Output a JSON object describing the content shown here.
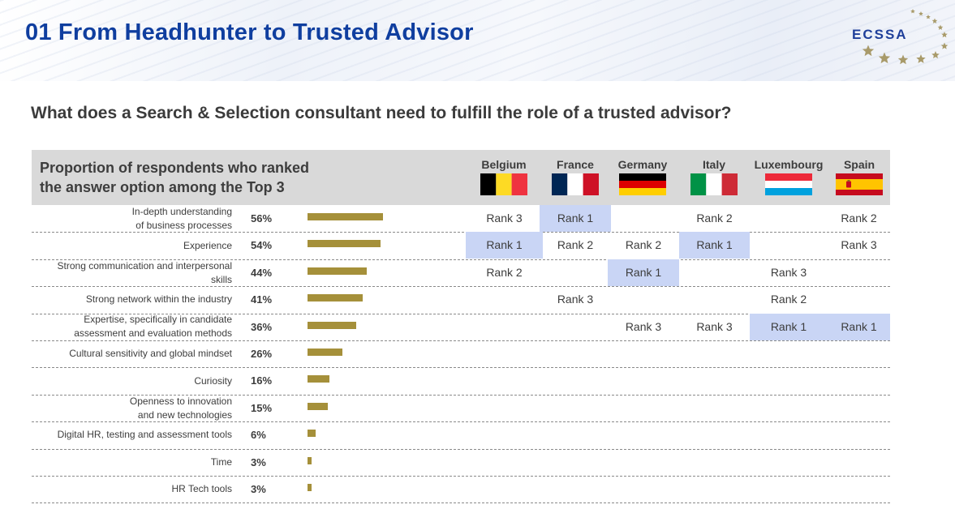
{
  "header": {
    "title": "01 From Headhunter to Trusted Advisor",
    "logo_text": "ECSSA"
  },
  "question": "What does a Search & Selection consultant need to fulfill the role of a trusted advisor?",
  "panel": {
    "title_line1": "Proportion of respondents who ranked",
    "title_line2": "the answer option among the Top 3"
  },
  "colors": {
    "title_blue": "#0f3e9f",
    "bar": "#a5903a",
    "highlight": "#c9d5f5",
    "header_gray": "#d9d9d9"
  },
  "countries": [
    {
      "name": "Belgium",
      "flag": "belgium-flag"
    },
    {
      "name": "France",
      "flag": "france-flag"
    },
    {
      "name": "Germany",
      "flag": "germany-flag"
    },
    {
      "name": "Italy",
      "flag": "italy-flag"
    },
    {
      "name": "Luxembourg",
      "flag": "luxembourg-flag"
    },
    {
      "name": "Spain",
      "flag": "spain-flag"
    }
  ],
  "rows": [
    {
      "label": [
        "In-depth understanding",
        "of  business processes"
      ],
      "pct_label": "56%",
      "value": 56,
      "ranks": [
        {
          "text": "Rank 3",
          "hl": false
        },
        {
          "text": "Rank 1",
          "hl": true
        },
        {
          "text": "",
          "hl": false
        },
        {
          "text": "Rank 2",
          "hl": false
        },
        {
          "text": "",
          "hl": false
        },
        {
          "text": "Rank 2",
          "hl": false
        }
      ]
    },
    {
      "label": [
        "Experience"
      ],
      "pct_label": "54%",
      "value": 54,
      "ranks": [
        {
          "text": "Rank 1",
          "hl": true
        },
        {
          "text": "Rank 2",
          "hl": false
        },
        {
          "text": "Rank 2",
          "hl": false
        },
        {
          "text": "Rank 1",
          "hl": true
        },
        {
          "text": "",
          "hl": false
        },
        {
          "text": "Rank 3",
          "hl": false
        }
      ]
    },
    {
      "label": [
        "Strong communication and interpersonal",
        "skills"
      ],
      "pct_label": "44%",
      "value": 44,
      "ranks": [
        {
          "text": "Rank 2",
          "hl": false
        },
        {
          "text": "",
          "hl": false
        },
        {
          "text": "Rank 1",
          "hl": true
        },
        {
          "text": "",
          "hl": false
        },
        {
          "text": "Rank 3",
          "hl": false
        },
        {
          "text": "",
          "hl": false
        }
      ]
    },
    {
      "label": [
        "Strong network within the industry"
      ],
      "pct_label": "41%",
      "value": 41,
      "ranks": [
        {
          "text": "",
          "hl": false
        },
        {
          "text": "Rank 3",
          "hl": false
        },
        {
          "text": "",
          "hl": false
        },
        {
          "text": "",
          "hl": false
        },
        {
          "text": "Rank 2",
          "hl": false
        },
        {
          "text": "",
          "hl": false
        }
      ]
    },
    {
      "label": [
        "Expertise, specifically in candidate",
        "assessment and evaluation methods"
      ],
      "pct_label": "36%",
      "value": 36,
      "ranks": [
        {
          "text": "",
          "hl": false
        },
        {
          "text": "",
          "hl": false
        },
        {
          "text": "Rank 3",
          "hl": false
        },
        {
          "text": "Rank 3",
          "hl": false
        },
        {
          "text": "Rank 1",
          "hl": true
        },
        {
          "text": "Rank 1",
          "hl": true
        }
      ]
    },
    {
      "label": [
        "Cultural sensitivity and global mindset"
      ],
      "pct_label": "26%",
      "value": 26,
      "ranks": [
        {
          "text": "",
          "hl": false
        },
        {
          "text": "",
          "hl": false
        },
        {
          "text": "",
          "hl": false
        },
        {
          "text": "",
          "hl": false
        },
        {
          "text": "",
          "hl": false
        },
        {
          "text": "",
          "hl": false
        }
      ]
    },
    {
      "label": [
        "Curiosity"
      ],
      "pct_label": "16%",
      "value": 16,
      "ranks": [
        {
          "text": "",
          "hl": false
        },
        {
          "text": "",
          "hl": false
        },
        {
          "text": "",
          "hl": false
        },
        {
          "text": "",
          "hl": false
        },
        {
          "text": "",
          "hl": false
        },
        {
          "text": "",
          "hl": false
        }
      ]
    },
    {
      "label": [
        "Openness to innovation",
        "and new technologies"
      ],
      "pct_label": "15%",
      "value": 15,
      "ranks": [
        {
          "text": "",
          "hl": false
        },
        {
          "text": "",
          "hl": false
        },
        {
          "text": "",
          "hl": false
        },
        {
          "text": "",
          "hl": false
        },
        {
          "text": "",
          "hl": false
        },
        {
          "text": "",
          "hl": false
        }
      ]
    },
    {
      "label": [
        "Digital HR, testing and assessment tools"
      ],
      "pct_label": "6%",
      "value": 6,
      "ranks": [
        {
          "text": "",
          "hl": false
        },
        {
          "text": "",
          "hl": false
        },
        {
          "text": "",
          "hl": false
        },
        {
          "text": "",
          "hl": false
        },
        {
          "text": "",
          "hl": false
        },
        {
          "text": "",
          "hl": false
        }
      ]
    },
    {
      "label": [
        "Time"
      ],
      "pct_label": "3%",
      "value": 3,
      "ranks": [
        {
          "text": "",
          "hl": false
        },
        {
          "text": "",
          "hl": false
        },
        {
          "text": "",
          "hl": false
        },
        {
          "text": "",
          "hl": false
        },
        {
          "text": "",
          "hl": false
        },
        {
          "text": "",
          "hl": false
        }
      ]
    },
    {
      "label": [
        "HR Tech tools"
      ],
      "pct_label": "3%",
      "value": 3,
      "ranks": [
        {
          "text": "",
          "hl": false
        },
        {
          "text": "",
          "hl": false
        },
        {
          "text": "",
          "hl": false
        },
        {
          "text": "",
          "hl": false
        },
        {
          "text": "",
          "hl": false
        },
        {
          "text": "",
          "hl": false
        }
      ]
    }
  ]
}
